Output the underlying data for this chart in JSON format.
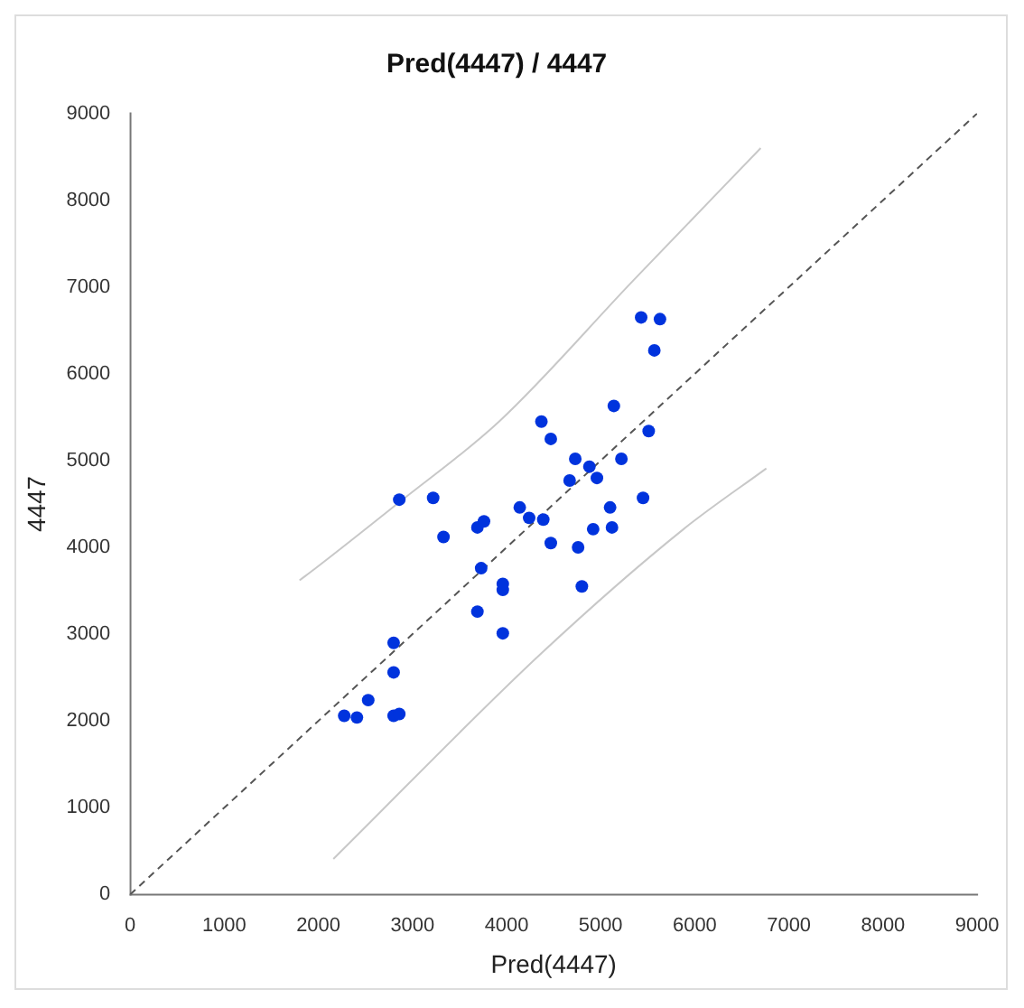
{
  "chart_data": {
    "type": "scatter",
    "title": "Pred(4447) / 4447",
    "xlabel": "Pred(4447)",
    "ylabel": "4447",
    "xlim": [
      0,
      9000
    ],
    "ylim": [
      0,
      9000
    ],
    "xticks": [
      0,
      1000,
      2000,
      3000,
      4000,
      5000,
      6000,
      7000,
      8000,
      9000
    ],
    "yticks": [
      0,
      1000,
      2000,
      3000,
      4000,
      5000,
      6000,
      7000,
      8000,
      9000
    ],
    "grid": false,
    "legend": false,
    "marker": "circle",
    "series": [
      {
        "color": "#0033dd",
        "x": [
          2275,
          2410,
          2530,
          2800,
          2800,
          2800,
          2860,
          2860,
          3220,
          3330,
          3690,
          3760,
          3730,
          3690,
          3960,
          3960,
          3960,
          4140,
          4240,
          4390,
          4370,
          4470,
          4470,
          4670,
          4730,
          4760,
          4800,
          4880,
          4960,
          4920,
          5100,
          5120,
          5140,
          5220,
          5450,
          5510,
          5430,
          5630,
          5570
        ],
        "values": [
          2060,
          2040,
          2240,
          2900,
          2560,
          2060,
          2080,
          4550,
          4570,
          4120,
          4230,
          4300,
          3760,
          3260,
          3510,
          3580,
          3010,
          4460,
          4340,
          4320,
          5450,
          5250,
          4050,
          4770,
          5020,
          4000,
          3550,
          4930,
          4800,
          4210,
          4460,
          4230,
          5630,
          5020,
          4570,
          5340,
          6650,
          6630,
          6270
        ]
      },
      {
        "type": "line",
        "color": "#555555",
        "line_style": "dashed",
        "marker": "none",
        "x": [
          0,
          9000
        ],
        "values": [
          0,
          9000
        ]
      },
      {
        "type": "line",
        "color": "#c8c8c8",
        "line_style": "solid",
        "marker": "none",
        "x": [
          1800,
          1960,
          2860,
          3920,
          5350,
          6700
        ],
        "values": [
          3620,
          3750,
          4520,
          5450,
          7080,
          8600
        ]
      },
      {
        "type": "line",
        "color": "#c8c8c8",
        "line_style": "solid",
        "marker": "none",
        "x": [
          2160,
          4370,
          5880,
          6760
        ],
        "values": [
          410,
          2780,
          4210,
          4910
        ]
      }
    ]
  }
}
